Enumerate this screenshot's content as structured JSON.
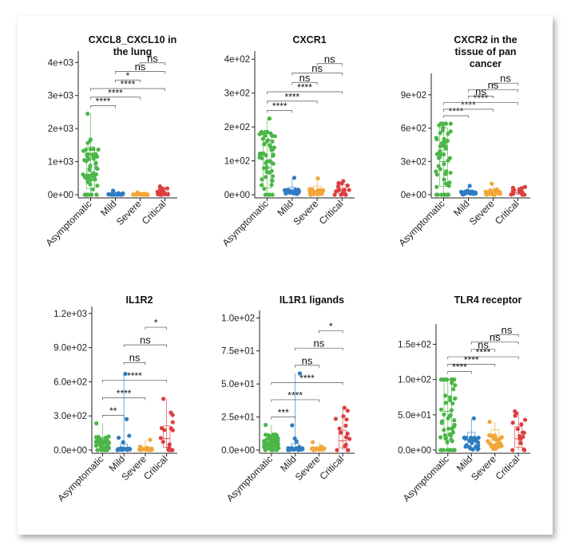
{
  "colors": {
    "Asymptomatic": "#4cb648",
    "Mild": "#2f7cc1",
    "Severe": "#f1a739",
    "Critical": "#dc3f3f"
  },
  "chart_data": [
    {
      "type": "scatter",
      "title": "CXCL8_CXCL10 in the lung",
      "title_lines": [
        "CXCL8_CXCL10 in",
        "the lung"
      ],
      "categories": [
        "Asymptomatic",
        "Mild",
        "Severe",
        "Critical"
      ],
      "ylim": [
        0,
        4200
      ],
      "ticks": [
        0,
        1000,
        2000,
        3000,
        4000
      ],
      "tick_labels": [
        "0e+00",
        "1e+03",
        "2e+03",
        "3e+03",
        "4e+03"
      ],
      "medians": [
        700,
        10,
        10,
        40
      ],
      "maxima": [
        2450,
        120,
        70,
        250
      ],
      "comparisons": [
        {
          "from": "Asymptomatic",
          "to": "Mild",
          "label": "****"
        },
        {
          "from": "Asymptomatic",
          "to": "Severe",
          "label": "****"
        },
        {
          "from": "Asymptomatic",
          "to": "Critical",
          "label": "****"
        },
        {
          "from": "Mild",
          "to": "Severe",
          "label": "*"
        },
        {
          "from": "Mild",
          "to": "Critical",
          "label": "ns"
        },
        {
          "from": "Severe",
          "to": "Critical",
          "label": "ns"
        }
      ]
    },
    {
      "type": "scatter",
      "title": "CXCR1",
      "title_lines": [
        "CXCR1"
      ],
      "categories": [
        "Asymptomatic",
        "Mild",
        "Severe",
        "Critical"
      ],
      "ylim": [
        0,
        410
      ],
      "ticks": [
        0,
        100,
        200,
        300,
        400
      ],
      "tick_labels": [
        "0e+00",
        "1e+02",
        "2e+02",
        "3e+02",
        "4e+02"
      ],
      "medians": [
        80,
        10,
        12,
        15
      ],
      "maxima": [
        225,
        50,
        48,
        40
      ],
      "comparisons": [
        {
          "from": "Asymptomatic",
          "to": "Mild",
          "label": "****"
        },
        {
          "from": "Asymptomatic",
          "to": "Severe",
          "label": "****"
        },
        {
          "from": "Asymptomatic",
          "to": "Critical",
          "label": "****"
        },
        {
          "from": "Mild",
          "to": "Severe",
          "label": "ns"
        },
        {
          "from": "Mild",
          "to": "Critical",
          "label": "ns"
        },
        {
          "from": "Severe",
          "to": "Critical",
          "label": "ns"
        }
      ]
    },
    {
      "type": "scatter",
      "title": "CXCR2 in the tissue of pan cancer",
      "title_lines": [
        "CXCR2 in the",
        "tissue of pan",
        "cancer"
      ],
      "categories": [
        "Asymptomatic",
        "Mild",
        "Severe",
        "Critical"
      ],
      "ylim": [
        0,
        1050
      ],
      "ticks": [
        0,
        300,
        600,
        900
      ],
      "tick_labels": [
        "0e+00",
        "3e+02",
        "6e+02",
        "9e+02"
      ],
      "medians": [
        300,
        20,
        20,
        20
      ],
      "maxima": [
        640,
        80,
        100,
        70
      ],
      "comparisons": [
        {
          "from": "Asymptomatic",
          "to": "Mild",
          "label": "****"
        },
        {
          "from": "Asymptomatic",
          "to": "Severe",
          "label": "****"
        },
        {
          "from": "Asymptomatic",
          "to": "Critical",
          "label": "****"
        },
        {
          "from": "Mild",
          "to": "Severe",
          "label": "ns"
        },
        {
          "from": "Mild",
          "to": "Critical",
          "label": "ns"
        },
        {
          "from": "Severe",
          "to": "Critical",
          "label": "ns"
        }
      ]
    },
    {
      "type": "scatter",
      "title": "IL1R2",
      "title_lines": [
        "IL1R2"
      ],
      "categories": [
        "Asymptomatic",
        "Mild",
        "Severe",
        "Critical"
      ],
      "ylim": [
        0,
        1220
      ],
      "ticks": [
        0,
        300,
        600,
        900,
        1200
      ],
      "tick_labels": [
        "0.0e+00",
        "3.0e+02",
        "6.0e+02",
        "9.0e+02",
        "1.2e+03"
      ],
      "medians": [
        50,
        10,
        10,
        100
      ],
      "maxima": [
        235,
        670,
        90,
        450
      ],
      "comparisons": [
        {
          "from": "Asymptomatic",
          "to": "Mild",
          "label": "**"
        },
        {
          "from": "Asymptomatic",
          "to": "Severe",
          "label": "****"
        },
        {
          "from": "Asymptomatic",
          "to": "Critical",
          "label": "****"
        },
        {
          "from": "Mild",
          "to": "Severe",
          "label": "ns"
        },
        {
          "from": "Mild",
          "to": "Critical",
          "label": "ns"
        },
        {
          "from": "Severe",
          "to": "Critical",
          "label": "*"
        }
      ]
    },
    {
      "type": "scatter",
      "title": "IL1R1 ligands",
      "title_lines": [
        "IL1R1 ligands"
      ],
      "categories": [
        "Asymptomatic",
        "Mild",
        "Severe",
        "Critical"
      ],
      "ylim": [
        0,
        102
      ],
      "ticks": [
        0,
        25,
        50,
        75,
        100
      ],
      "tick_labels": [
        "0.0e+00",
        "2.5e+01",
        "5.0e+01",
        "7.5e+01",
        "1.0e+02"
      ],
      "medians": [
        5,
        1,
        1,
        7
      ],
      "maxima": [
        19,
        58,
        6,
        32
      ],
      "comparisons": [
        {
          "from": "Asymptomatic",
          "to": "Mild",
          "label": "***"
        },
        {
          "from": "Asymptomatic",
          "to": "Severe",
          "label": "****"
        },
        {
          "from": "Asymptomatic",
          "to": "Critical",
          "label": "****"
        },
        {
          "from": "Mild",
          "to": "Severe",
          "label": "ns"
        },
        {
          "from": "Mild",
          "to": "Critical",
          "label": "ns"
        },
        {
          "from": "Severe",
          "to": "Critical",
          "label": "*"
        }
      ]
    },
    {
      "type": "scatter",
      "title": "TLR4 receptor",
      "title_lines": [
        "TLR4 receptor"
      ],
      "categories": [
        "Asymptomatic",
        "Mild",
        "Severe",
        "Critical"
      ],
      "ylim": [
        0,
        172
      ],
      "ticks": [
        0,
        50,
        100,
        150
      ],
      "tick_labels": [
        "0.0e+00",
        "5.0e+01",
        "1.0e+02",
        "1.5e+02"
      ],
      "medians": [
        55,
        12,
        14,
        16
      ],
      "maxima": [
        100,
        45,
        40,
        55
      ],
      "comparisons": [
        {
          "from": "Asymptomatic",
          "to": "Mild",
          "label": "****"
        },
        {
          "from": "Asymptomatic",
          "to": "Severe",
          "label": "****"
        },
        {
          "from": "Asymptomatic",
          "to": "Critical",
          "label": "****"
        },
        {
          "from": "Mild",
          "to": "Severe",
          "label": "ns"
        },
        {
          "from": "Mild",
          "to": "Critical",
          "label": "ns"
        },
        {
          "from": "Severe",
          "to": "Critical",
          "label": "ns"
        }
      ]
    }
  ]
}
